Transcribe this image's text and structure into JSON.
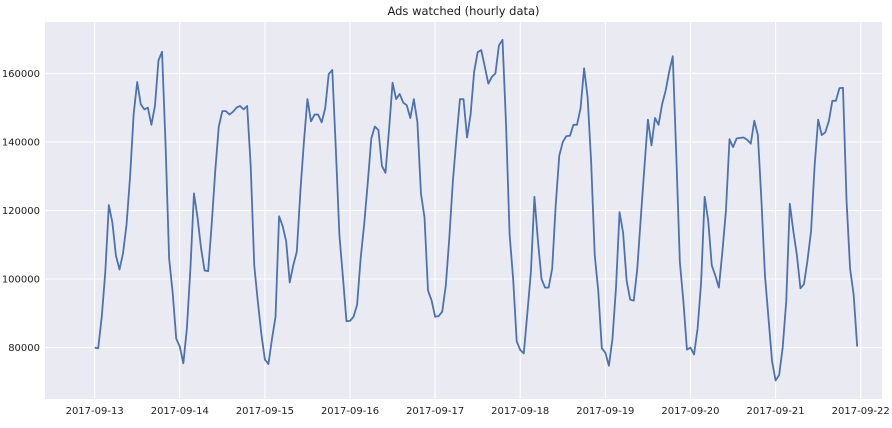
{
  "chart_data": {
    "type": "line",
    "title": "Ads watched (hourly data)",
    "xlabel": "",
    "ylabel": "",
    "x_start": "2017-09-13T00:00",
    "x_step_hours": 1,
    "xlim": [
      "2017-09-12T10:00",
      "2017-09-22T06:00"
    ],
    "ylim": [
      65000,
      175000
    ],
    "x_ticks": [
      "2017-09-13",
      "2017-09-14",
      "2017-09-15",
      "2017-09-16",
      "2017-09-17",
      "2017-09-18",
      "2017-09-19",
      "2017-09-20",
      "2017-09-21",
      "2017-09-22"
    ],
    "y_ticks": [
      80000,
      100000,
      120000,
      140000,
      160000
    ],
    "y_tick_labels": [
      "80000",
      "100000",
      "120000",
      "140000",
      "160000"
    ],
    "grid": true,
    "series": [
      {
        "color": "#4c72b0",
        "values": [
          80000,
          79800,
          89000,
          102000,
          121600,
          116500,
          106800,
          102800,
          107500,
          116000,
          130000,
          148200,
          157500,
          151000,
          149500,
          150000,
          145000,
          150500,
          163800,
          166300,
          139000,
          106000,
          96000,
          82600,
          80300,
          75400,
          85500,
          103000,
          125000,
          118000,
          109000,
          102500,
          102300,
          116000,
          131500,
          144500,
          149000,
          149000,
          148000,
          148800,
          150000,
          150500,
          149500,
          150500,
          133000,
          104000,
          93500,
          84000,
          76500,
          75200,
          82500,
          89000,
          118300,
          115500,
          111000,
          99000,
          104000,
          108000,
          125500,
          140000,
          152500,
          146000,
          148000,
          148000,
          145700,
          149800,
          159800,
          161000,
          138000,
          113000,
          100500,
          87700,
          87800,
          89000,
          92500,
          106000,
          116000,
          128000,
          141000,
          144500,
          143500,
          133000,
          131000,
          143500,
          157300,
          152500,
          154000,
          151500,
          150700,
          147000,
          152500,
          145800,
          125000,
          118000,
          96600,
          93800,
          89000,
          89200,
          90500,
          98000,
          112000,
          128500,
          141000,
          152500,
          152500,
          141300,
          148000,
          160500,
          166200,
          166800,
          162000,
          157000,
          159000,
          160000,
          168200,
          169800,
          145000,
          113000,
          100000,
          81800,
          79300,
          78300,
          90000,
          102000,
          124000,
          111000,
          100000,
          97500,
          97500,
          103000,
          121500,
          136000,
          140000,
          141700,
          141800,
          145000,
          145000,
          149800,
          161500,
          153000,
          134000,
          107000,
          96500,
          79800,
          78500,
          74700,
          82500,
          97500,
          119500,
          113500,
          99500,
          94000,
          93700,
          103000,
          118000,
          132500,
          146500,
          139000,
          147000,
          145000,
          151000,
          155000,
          160500,
          165000,
          136000,
          105000,
          93500,
          79400,
          80000,
          78000,
          85500,
          99000,
          124000,
          117000,
          104000,
          101000,
          97500,
          108000,
          120000,
          140800,
          138500,
          141000,
          141200,
          141300,
          140600,
          139500,
          146200,
          142000,
          123000,
          101000,
          88500,
          76000,
          70400,
          72000,
          80000,
          93500,
          122000,
          114000,
          107000,
          97300,
          98500,
          105500,
          114000,
          133000,
          146500,
          142000,
          142800,
          146000,
          152000,
          152000,
          155700,
          155800,
          123000,
          103000,
          95500,
          80300
        ]
      }
    ]
  }
}
